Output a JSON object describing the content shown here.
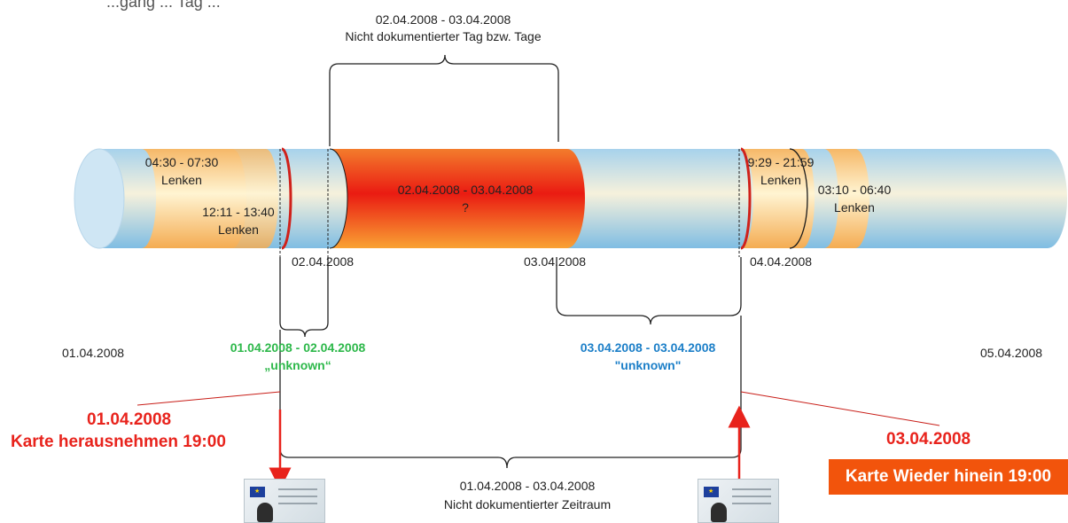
{
  "heading_fragment": "...gang ... Tag ...",
  "top_brace": {
    "date": "02.04.2008 - 03.04.2008",
    "text": "Nicht dokumentierter Tag bzw. Tage"
  },
  "bottom_brace": {
    "date": "01.04.2008 - 03.04.2008",
    "text": "Nicht dokumentierter Zeitraum"
  },
  "segments": {
    "drive1": {
      "time": "04:30 - 07:30",
      "label": "Lenken"
    },
    "drive2": {
      "time": "12:11 - 13:40",
      "label": "Lenken"
    },
    "gap": {
      "date": "02.04.2008 - 03.04.2008",
      "label": "?"
    },
    "drive3": {
      "time": "9:29 - 21:59",
      "label": "Lenken"
    },
    "drive4": {
      "time": "03:10 - 06:40",
      "label": "Lenken"
    }
  },
  "day_markers": {
    "d2": "02.04.2008",
    "d3": "03.04.2008",
    "d4": "04.04.2008"
  },
  "edge_dates": {
    "left": "01.04.2008",
    "right": "05.04.2008"
  },
  "unknown_left": {
    "date": "01.04.2008 - 02.04.2008",
    "label": "„unknown“",
    "color": "#2db84a"
  },
  "unknown_right": {
    "date": "03.04.2008 - 03.04.2008",
    "label": "\"unknown\"",
    "color": "#1c7fc8"
  },
  "remove_event": {
    "date": "01.04.2008",
    "text": "Karte herausnehmen 19:00"
  },
  "insert_event": {
    "date": "03.04.2008",
    "text": "Karte Wieder hinein 19:00"
  },
  "colors": {
    "accent_red": "#e8231c",
    "badge_orange": "#f2540c"
  }
}
